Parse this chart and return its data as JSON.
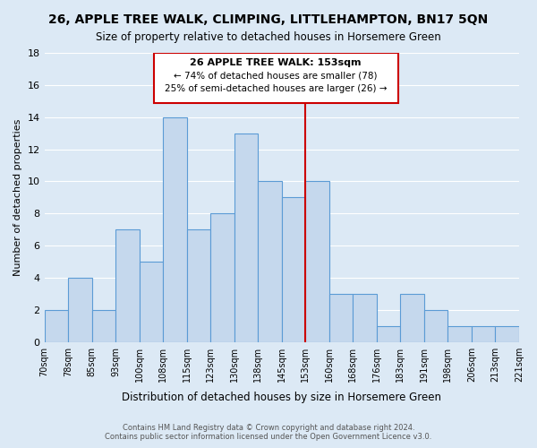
{
  "title": "26, APPLE TREE WALK, CLIMPING, LITTLEHAMPTON, BN17 5QN",
  "subtitle": "Size of property relative to detached houses in Horsemere Green",
  "xlabel": "Distribution of detached houses by size in Horsemere Green",
  "ylabel": "Number of detached properties",
  "footer_line1": "Contains HM Land Registry data © Crown copyright and database right 2024.",
  "footer_line2": "Contains public sector information licensed under the Open Government Licence v3.0.",
  "bin_edges": [
    70,
    78,
    85,
    93,
    100,
    108,
    115,
    123,
    130,
    138,
    145,
    153,
    160,
    168,
    176,
    183,
    191,
    198,
    206,
    213,
    221
  ],
  "bin_labels": [
    "70sqm",
    "78sqm",
    "85sqm",
    "93sqm",
    "100sqm",
    "108sqm",
    "115sqm",
    "123sqm",
    "130sqm",
    "138sqm",
    "145sqm",
    "153sqm",
    "160sqm",
    "168sqm",
    "176sqm",
    "183sqm",
    "191sqm",
    "198sqm",
    "206sqm",
    "213sqm",
    "221sqm"
  ],
  "bar_heights": [
    2,
    4,
    2,
    7,
    5,
    14,
    7,
    8,
    13,
    10,
    9,
    10,
    3,
    3,
    1,
    3,
    2,
    1,
    1,
    1
  ],
  "bar_color": "#c5d8ed",
  "bar_edge_color": "#5b9bd5",
  "red_line_bin": 11,
  "annotation_title": "26 APPLE TREE WALK: 153sqm",
  "annotation_line1": "← 74% of detached houses are smaller (78)",
  "annotation_line2": "25% of semi-detached houses are larger (26) →",
  "annotation_box_color": "#ffffff",
  "annotation_box_edge": "#cc0000",
  "ylim": [
    0,
    18
  ],
  "yticks": [
    0,
    2,
    4,
    6,
    8,
    10,
    12,
    14,
    16,
    18
  ],
  "grid_color": "#ffffff",
  "background_color": "#dce9f5"
}
